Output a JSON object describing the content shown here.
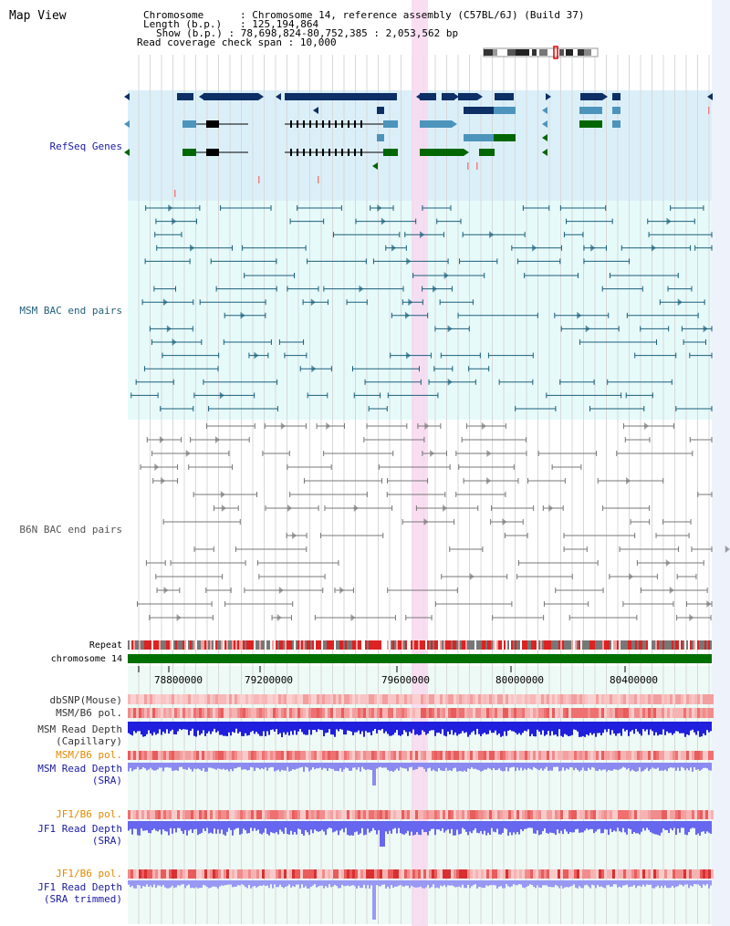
{
  "app": {
    "title": "Map View"
  },
  "info": [
    {
      "key": "Chromosome",
      "value": "Chromosome 14, reference assembly (C57BL/6J) (Build 37)"
    },
    {
      "key": "Length (b.p.)",
      "value": "125,194,864"
    },
    {
      "key": "Show (b.p.)",
      "value": "78,698,824-80,752,385 : 2,053,562 bp"
    },
    {
      "key": "Read coverage check span",
      "value": "10,000"
    }
  ],
  "tracks": {
    "refseq": "RefSeq Genes",
    "msm_bac": "MSM BAC end pairs",
    "b6n_bac": "B6N BAC end pairs",
    "repeat": "Repeat",
    "chromosome": "chromosome 14",
    "dbsnp": "dbSNP(Mouse)",
    "msm_b6_pol": "MSM/B6 pol.",
    "msm_depth_cap_1": "MSM Read Depth",
    "msm_depth_cap_2": "(Capillary)",
    "msm_b6_pol2": "MSM/B6 pol.",
    "msm_depth_sra_1": "MSM Read Depth",
    "msm_depth_sra_2": "(SRA)",
    "jf1_b6_pol": "JF1/B6 pol.",
    "jf1_depth_sra_1": "JF1 Read Depth",
    "jf1_depth_sra_2": "(SRA)",
    "jf1_b6_pol2": "JF1/B6 pol.",
    "jf1_depth_trim_1": "JF1 Read Depth",
    "jf1_depth_trim_2": "(SRA trimmed)"
  },
  "ruler": {
    "ticks": [
      "78800000",
      "79200000",
      "79600000",
      "80000000",
      "80400000"
    ]
  },
  "colors": {
    "refseq_bg": "#dbeff9",
    "msm_bg": "#e6fafa",
    "highlight": "#f8d8f0",
    "dark_gene": "#0d2f66",
    "mid_gene": "#4d94bc",
    "green_gene": "#006600",
    "msm_line": "#1a5f7a",
    "b6n_line": "#777777",
    "chrom_green": "#007000",
    "label_navy": "#1a1aa0",
    "label_teal": "#22607a",
    "label_orange": "#e08a00"
  }
}
